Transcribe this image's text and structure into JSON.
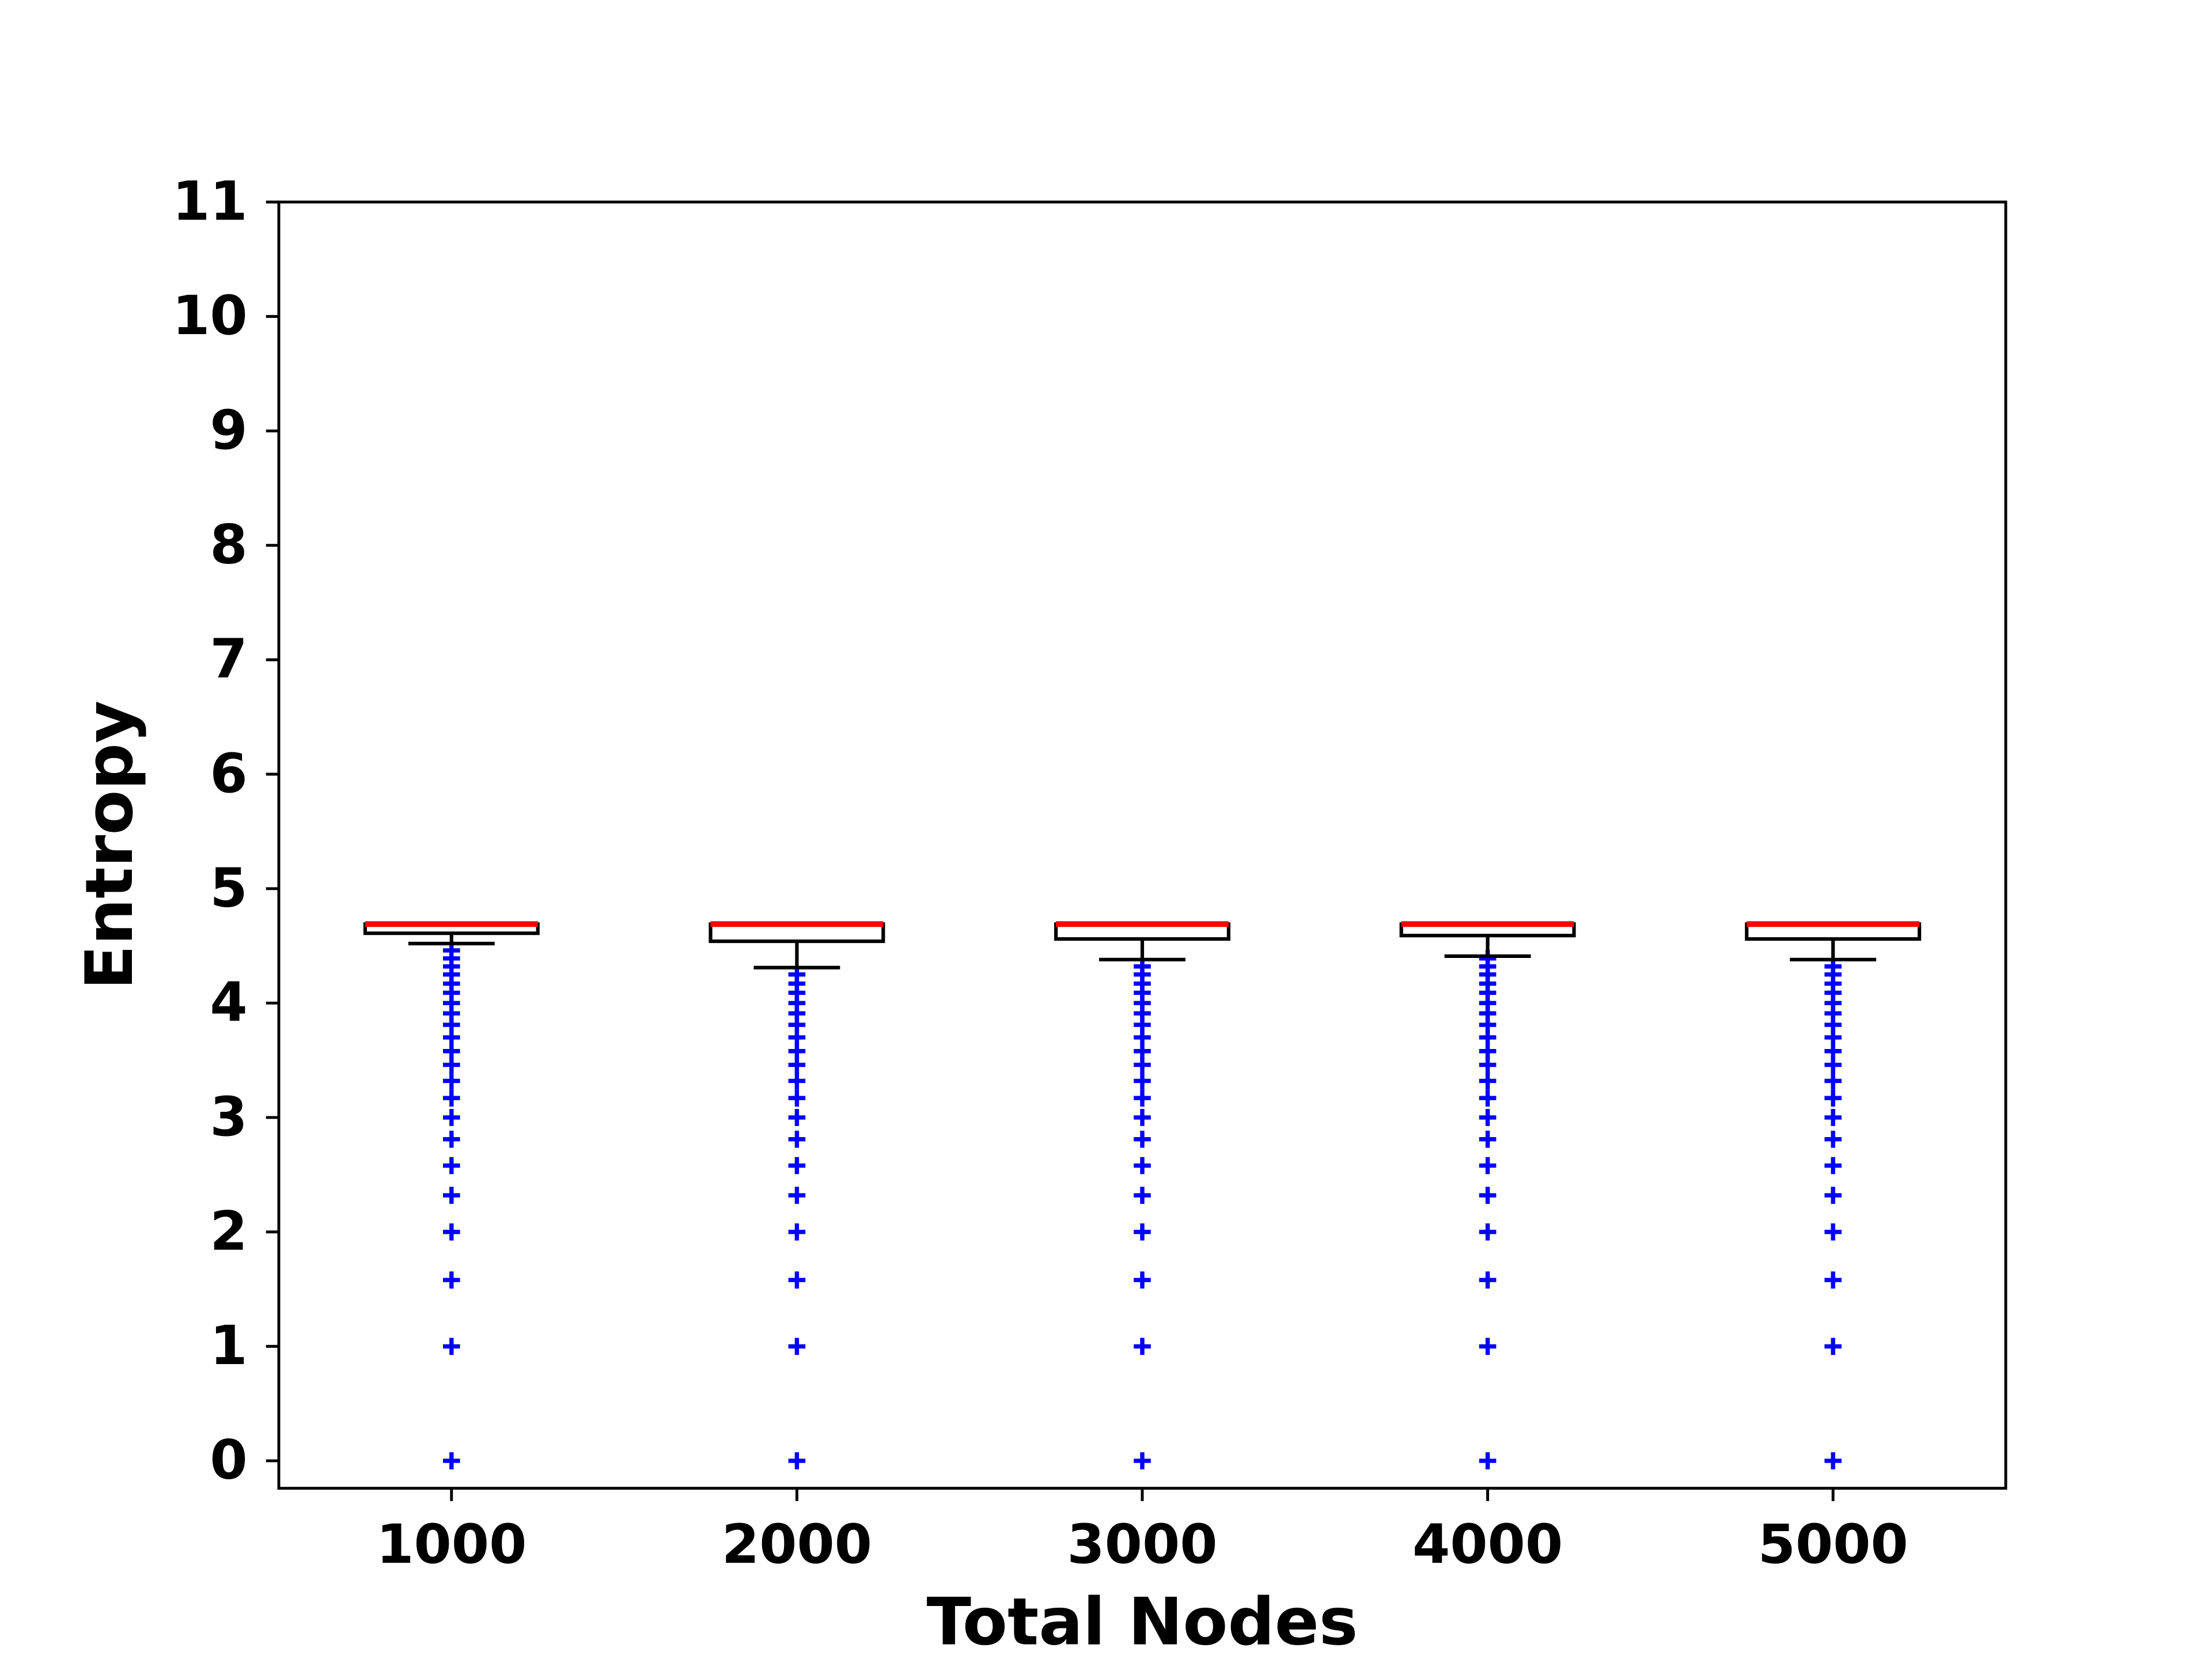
{
  "chart_data": {
    "type": "boxplot",
    "x_label": "Total Nodes",
    "y_label": "Entropy",
    "categories": [
      "1000",
      "2000",
      "3000",
      "4000",
      "5000"
    ],
    "ylim": [
      -0.24,
      11
    ],
    "yticks": [
      0,
      1,
      2,
      3,
      4,
      5,
      6,
      7,
      8,
      9,
      10,
      11
    ],
    "box_color": "#000000",
    "median_color": "#ff0000",
    "flier_color": "#0000ff",
    "series": [
      {
        "whislo": 4.52,
        "q1": 4.61,
        "med": 4.69,
        "q3": 4.69,
        "whishi": 4.69,
        "fliers": [
          0,
          1,
          1.58,
          2,
          2.32,
          2.58,
          2.81,
          3,
          3.17,
          3.32,
          3.46,
          3.58,
          3.7,
          3.81,
          3.91,
          4,
          4.09,
          4.17,
          4.25,
          4.32,
          4.39,
          4.46
        ]
      },
      {
        "whislo": 4.31,
        "q1": 4.54,
        "med": 4.69,
        "q3": 4.69,
        "whishi": 4.69,
        "fliers": [
          0,
          1,
          1.58,
          2,
          2.32,
          2.58,
          2.81,
          3,
          3.17,
          3.32,
          3.46,
          3.58,
          3.7,
          3.81,
          3.91,
          4,
          4.09,
          4.17,
          4.25
        ]
      },
      {
        "whislo": 4.38,
        "q1": 4.56,
        "med": 4.69,
        "q3": 4.69,
        "whishi": 4.69,
        "fliers": [
          0,
          1,
          1.58,
          2,
          2.32,
          2.58,
          2.81,
          3,
          3.17,
          3.32,
          3.46,
          3.58,
          3.7,
          3.81,
          3.91,
          4,
          4.09,
          4.17,
          4.25,
          4.32
        ]
      },
      {
        "whislo": 4.41,
        "q1": 4.59,
        "med": 4.69,
        "q3": 4.69,
        "whishi": 4.69,
        "fliers": [
          0,
          1,
          1.58,
          2,
          2.32,
          2.58,
          2.81,
          3,
          3.17,
          3.32,
          3.46,
          3.58,
          3.7,
          3.81,
          3.91,
          4,
          4.09,
          4.17,
          4.25,
          4.32,
          4.39
        ]
      },
      {
        "whislo": 4.38,
        "q1": 4.56,
        "med": 4.69,
        "q3": 4.69,
        "whishi": 4.69,
        "fliers": [
          0,
          1,
          1.58,
          2,
          2.32,
          2.58,
          2.81,
          3,
          3.17,
          3.32,
          3.46,
          3.58,
          3.7,
          3.81,
          3.91,
          4,
          4.09,
          4.17,
          4.25,
          4.32
        ]
      }
    ]
  }
}
